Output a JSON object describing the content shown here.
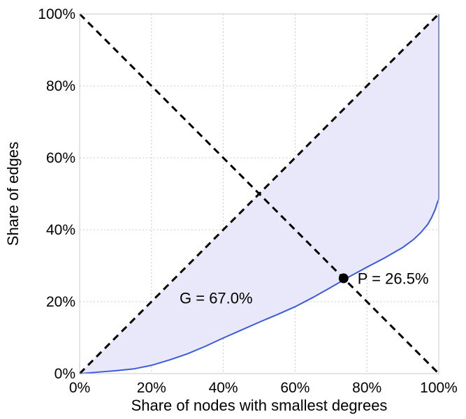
{
  "chart_data": {
    "type": "line",
    "title": "",
    "xlabel": "Share of nodes with smallest degrees",
    "ylabel": "Share of edges",
    "xlim": [
      0,
      100
    ],
    "ylim": [
      0,
      100
    ],
    "x_ticks": [
      "0%",
      "20%",
      "40%",
      "60%",
      "80%",
      "100%"
    ],
    "y_ticks": [
      "0%",
      "20%",
      "40%",
      "60%",
      "80%",
      "100%"
    ],
    "grid": true,
    "series": [
      {
        "name": "",
        "style": "solid",
        "color": "#3b5bdb",
        "fill": "#e8e8fa",
        "x": [
          0,
          5,
          10,
          15,
          20,
          25,
          30,
          35,
          40,
          45,
          50,
          55,
          60,
          65,
          70,
          75,
          80,
          85,
          90,
          93,
          95,
          97,
          98,
          99,
          99.6,
          100,
          100
        ],
        "y": [
          0,
          0.4,
          0.8,
          1.3,
          2.3,
          3.8,
          5.5,
          7.6,
          9.9,
          12.1,
          14.3,
          16.4,
          18.6,
          21.2,
          24.0,
          26.9,
          29.6,
          32.2,
          35.1,
          37.3,
          39.2,
          41.6,
          43.4,
          45.6,
          47.5,
          48.5,
          100
        ]
      },
      {
        "name": "",
        "style": "dashed",
        "color": "#000000",
        "x": [
          0,
          100
        ],
        "y": [
          0,
          100
        ]
      },
      {
        "name": "",
        "style": "dashed",
        "color": "#000000",
        "x": [
          0,
          100
        ],
        "y": [
          100,
          0
        ]
      }
    ],
    "point": {
      "x": 73.5,
      "y": 26.5,
      "label": "P = 26.5%"
    },
    "annotations": [
      {
        "text": "G = 67.0%",
        "x": 38,
        "y": 19.5
      }
    ]
  }
}
